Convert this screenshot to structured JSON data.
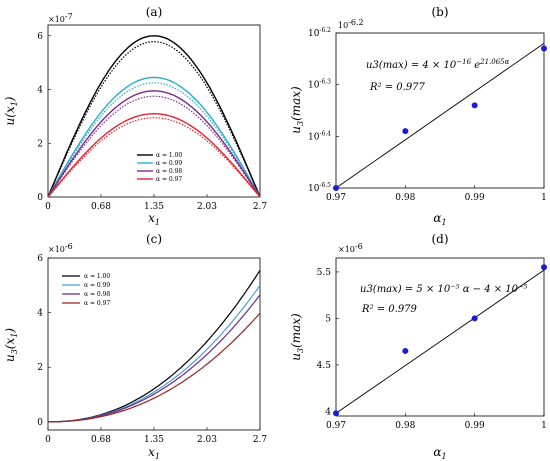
{
  "chart_data": [
    {
      "panel": "(a)",
      "type": "line",
      "xlabel": "x1",
      "ylabel": "u(x1)",
      "y_multiplier": "-7",
      "xlim": [
        0,
        2.7
      ],
      "ylim": [
        0,
        6.4
      ],
      "xticks": [
        "0",
        "0.68",
        "1.35",
        "2.03",
        "2.7"
      ],
      "yticks": [
        "0",
        "2",
        "4",
        "6"
      ],
      "legend_position": "center-bottom",
      "series": [
        {
          "name": "α = 1.00",
          "color": "#000000",
          "peak": 6.0,
          "dotted_peak": 5.78
        },
        {
          "name": "α = 0.99",
          "color": "#2ab0c8",
          "peak": 4.45,
          "dotted_peak": 4.25
        },
        {
          "name": "α = 0.98",
          "color": "#7b2a8c",
          "peak": 3.95,
          "dotted_peak": 3.75
        },
        {
          "name": "α = 0.97",
          "color": "#e8242c",
          "peak": 3.1,
          "dotted_peak": 2.95
        }
      ]
    },
    {
      "panel": "(b)",
      "type": "scatter",
      "xlabel": "α1",
      "ylabel": "u3(max)",
      "y_multiplier": "-6.2",
      "xlim": [
        0.97,
        1
      ],
      "ylim": [
        -6.5,
        -6.2
      ],
      "xticks": [
        "0.97",
        "0.98",
        "0.99",
        "1"
      ],
      "yticks": [
        "10",
        "10",
        "10",
        "10"
      ],
      "ytick_exponents": [
        "-6.5",
        "-6.4",
        "-6.3",
        "-6.2"
      ],
      "equation_base": "u3(max) = 4 × 10",
      "equation_exp": "−16",
      "equation_tail": " e",
      "equation_tail_exp": "21.065α",
      "r2": "R² = 0.977",
      "points": [
        {
          "x": 0.97,
          "y": -6.5
        },
        {
          "x": 0.98,
          "y": -6.39
        },
        {
          "x": 0.99,
          "y": -6.34
        },
        {
          "x": 1.0,
          "y": -6.23
        }
      ],
      "fit": [
        {
          "x": 0.97,
          "y": -6.5
        },
        {
          "x": 1.0,
          "y": -6.22
        }
      ],
      "point_color": "#1a1adb"
    },
    {
      "panel": "(c)",
      "type": "line",
      "xlabel": "x1",
      "ylabel": "u3(x1)",
      "y_multiplier": "-6",
      "xlim": [
        0,
        2.7
      ],
      "ylim": [
        -0.3,
        6
      ],
      "xticks": [
        "0",
        "0.68",
        "1.35",
        "2.03",
        "2.7"
      ],
      "yticks": [
        "0",
        "2",
        "4",
        "6"
      ],
      "legend_position": "top-left",
      "series": [
        {
          "name": "α = 1.00",
          "color": "#000000",
          "end": 5.55
        },
        {
          "name": "α = 0.99",
          "color": "#4aa0d8",
          "end": 5.0
        },
        {
          "name": "α = 0.98",
          "color": "#6a2a90",
          "end": 4.65
        },
        {
          "name": "α = 0.97",
          "color": "#a02020",
          "end": 3.98
        }
      ]
    },
    {
      "panel": "(d)",
      "type": "scatter",
      "xlabel": "α1",
      "ylabel": "u3(max)",
      "y_multiplier": "-6",
      "xlim": [
        0.97,
        1
      ],
      "ylim": [
        3.95,
        5.65
      ],
      "xticks": [
        "0.97",
        "0.98",
        "0.99",
        "1"
      ],
      "yticks": [
        "4",
        "4.5",
        "5",
        "5.5"
      ],
      "equation": "u3(max) = 5 × 10⁻⁵ α − 4 × 10⁻⁵",
      "r2": "R² = 0.979",
      "points": [
        {
          "x": 0.97,
          "y": 3.98
        },
        {
          "x": 0.98,
          "y": 4.65
        },
        {
          "x": 0.99,
          "y": 5.0
        },
        {
          "x": 1.0,
          "y": 5.55
        }
      ],
      "fit": [
        {
          "x": 0.97,
          "y": 3.98
        },
        {
          "x": 1.0,
          "y": 5.52
        }
      ],
      "point_color": "#1a1adb"
    }
  ]
}
